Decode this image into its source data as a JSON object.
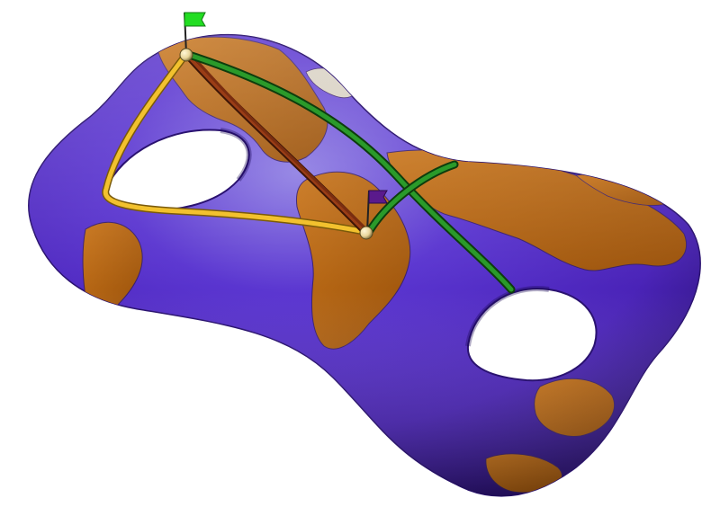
{
  "figure": {
    "background": "#ffffff",
    "surface": {
      "genus": 2,
      "ocean_color": "#4a23b8",
      "land_color": "#b8660f",
      "highlight_color": "#8f7fe3",
      "land_outline_color": "#3a1f6b"
    },
    "markers": [
      {
        "id": "start",
        "flag_color": "#22dd22",
        "point_color": "#e8d59a"
      },
      {
        "id": "end",
        "flag_color": "#5a1a8c",
        "point_color": "#e8d59a"
      }
    ],
    "paths": [
      {
        "id": "yellow-path",
        "color": "#f2c12e",
        "description_icon": "geodesic-curve"
      },
      {
        "id": "brown-path",
        "color": "#7a2d10",
        "description_icon": "geodesic-curve"
      },
      {
        "id": "green-path",
        "color": "#1f7f1f",
        "description_icon": "geodesic-curve"
      }
    ]
  }
}
